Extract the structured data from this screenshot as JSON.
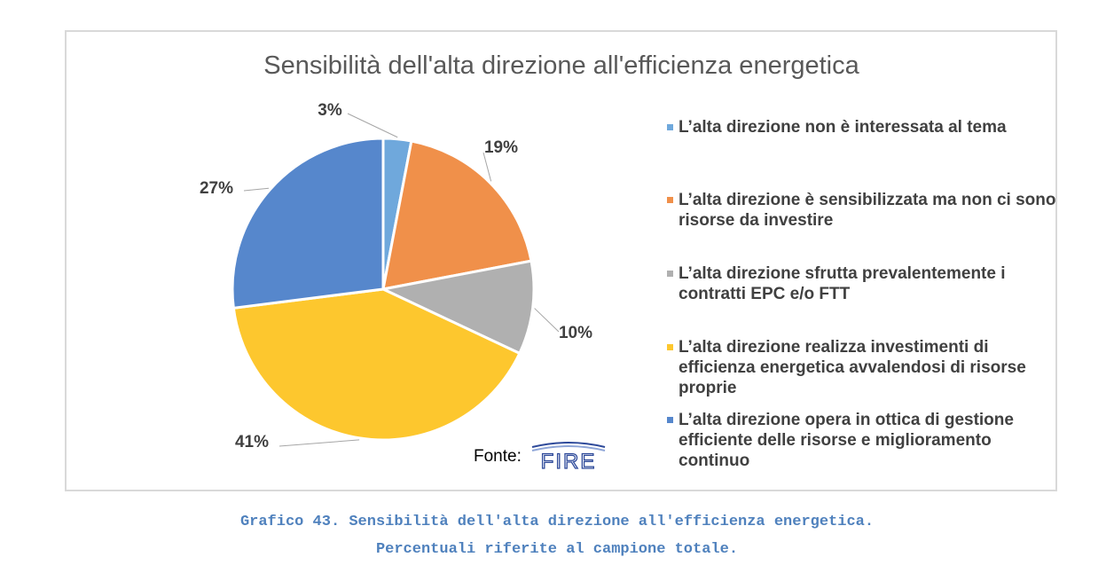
{
  "chart_data": {
    "type": "pie",
    "title": "Sensibilità dell'alta direzione all'efficienza energetica",
    "legend_position": "right",
    "slices": [
      {
        "name": "L’alta direzione non è interessata al tema",
        "value": 3,
        "label": "3%",
        "color": "#6fa8dc"
      },
      {
        "name": "L’alta direzione è sensibilizzata ma non ci sono risorse da investire",
        "value": 19,
        "label": "19%",
        "color": "#f0904a"
      },
      {
        "name": "L’alta direzione sfrutta prevalentemente i contratti EPC e/o FTT",
        "value": 10,
        "label": "10%",
        "color": "#b0b0b0"
      },
      {
        "name": "L’alta direzione realizza investimenti di efficienza energetica avvalendosi di risorse proprie",
        "value": 41,
        "label": "41%",
        "color": "#fdc72e"
      },
      {
        "name": "L’alta direzione opera in ottica di gestione efficiente delle risorse e miglioramento continuo",
        "value": 27,
        "label": "27%",
        "color": "#5687cc"
      }
    ]
  },
  "source": {
    "label": "Fonte:",
    "logo_text": "FIRE"
  },
  "caption": {
    "line1": "Grafico 43. Sensibilità dell'alta direzione all'efficienza energetica.",
    "line2": "Percentuali riferite al campione totale."
  }
}
